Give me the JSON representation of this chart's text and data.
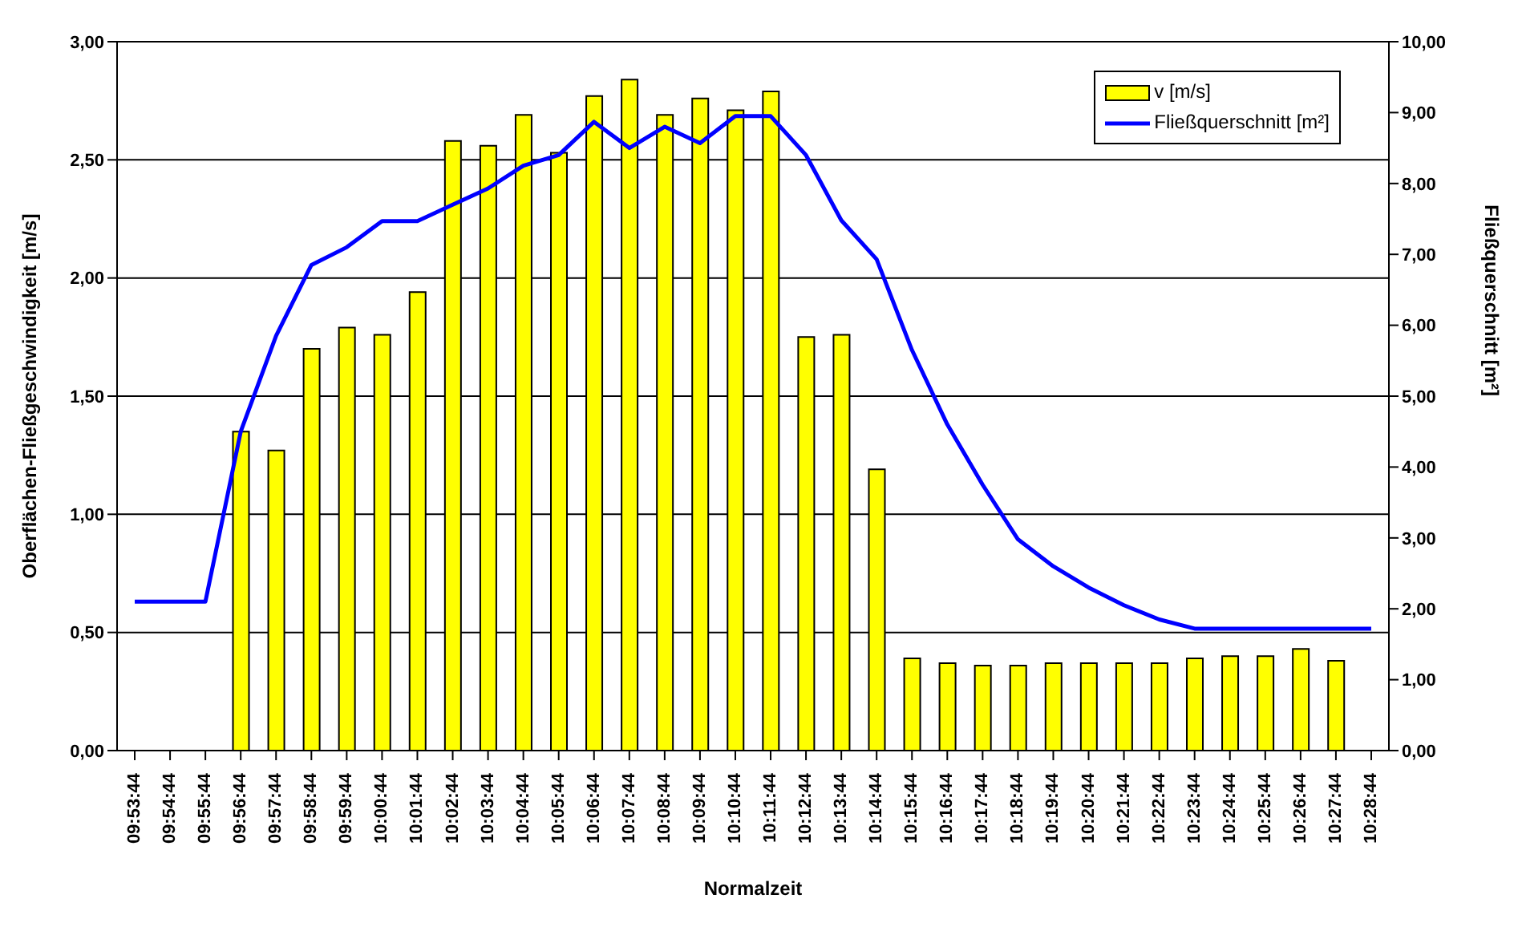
{
  "chart_data": {
    "type": "bar",
    "xlabel": "Normalzeit",
    "ylabel": "Oberflächen-Fließgeschwindigkeit [m/s]",
    "y2label": "Fließquerschnitt [m²]",
    "categories": [
      "09:53:44",
      "09:54:44",
      "09:55:44",
      "09:56:44",
      "09:57:44",
      "09:58:44",
      "09:59:44",
      "10:00:44",
      "10:01:44",
      "10:02:44",
      "10:03:44",
      "10:04:44",
      "10:05:44",
      "10:06:44",
      "10:07:44",
      "10:08:44",
      "10:09:44",
      "10:10:44",
      "10:11:44",
      "10:12:44",
      "10:13:44",
      "10:14:44",
      "10:15:44",
      "10:16:44",
      "10:17:44",
      "10:18:44",
      "10:19:44",
      "10:20:44",
      "10:21:44",
      "10:22:44",
      "10:23:44",
      "10:24:44",
      "10:25:44",
      "10:26:44",
      "10:27:44",
      "10:28:44"
    ],
    "series": [
      {
        "name": "v [m/s]",
        "color": "#ffff00",
        "values": [
          null,
          null,
          null,
          1.35,
          1.27,
          1.7,
          1.79,
          1.76,
          1.94,
          2.58,
          2.56,
          2.69,
          2.53,
          2.77,
          2.84,
          2.69,
          2.76,
          2.71,
          2.79,
          1.75,
          1.76,
          1.19,
          0.39,
          0.37,
          0.36,
          0.36,
          0.37,
          0.37,
          0.37,
          0.37,
          0.39,
          0.4,
          0.4,
          0.43,
          0.38,
          null
        ]
      },
      {
        "name": "Fließquerschnitt [m²]",
        "type": "line",
        "axis": "y2",
        "color": "#0000ff",
        "values": [
          2.1,
          2.1,
          2.1,
          4.5,
          5.85,
          6.85,
          7.1,
          7.47,
          7.47,
          7.7,
          7.93,
          8.25,
          8.4,
          8.87,
          8.5,
          8.8,
          8.57,
          8.95,
          8.95,
          8.4,
          7.48,
          6.93,
          5.65,
          4.6,
          3.75,
          2.98,
          2.6,
          2.3,
          2.05,
          1.85,
          1.72,
          1.72,
          1.72,
          1.72,
          1.72,
          1.72
        ]
      }
    ],
    "ylim": [
      0,
      3
    ],
    "yticks": [
      {
        "value": 0,
        "label": "0,00"
      },
      {
        "value": 0.5,
        "label": "0,50"
      },
      {
        "value": 1,
        "label": "1,00"
      },
      {
        "value": 1.5,
        "label": "1,50"
      },
      {
        "value": 2,
        "label": "2,00"
      },
      {
        "value": 2.5,
        "label": "2,50"
      },
      {
        "value": 3,
        "label": "3,00"
      }
    ],
    "y2lim": [
      0,
      10
    ],
    "y2ticks": [
      {
        "value": 0,
        "label": "0,00"
      },
      {
        "value": 1,
        "label": "1,00"
      },
      {
        "value": 2,
        "label": "2,00"
      },
      {
        "value": 3,
        "label": "3,00"
      },
      {
        "value": 4,
        "label": "4,00"
      },
      {
        "value": 5,
        "label": "5,00"
      },
      {
        "value": 6,
        "label": "6,00"
      },
      {
        "value": 7,
        "label": "7,00"
      },
      {
        "value": 8,
        "label": "8,00"
      },
      {
        "value": 9,
        "label": "9,00"
      },
      {
        "value": 10,
        "label": "10,00"
      }
    ],
    "grid": "y",
    "legend": "top right",
    "marker": "none",
    "line_style": "solid"
  }
}
